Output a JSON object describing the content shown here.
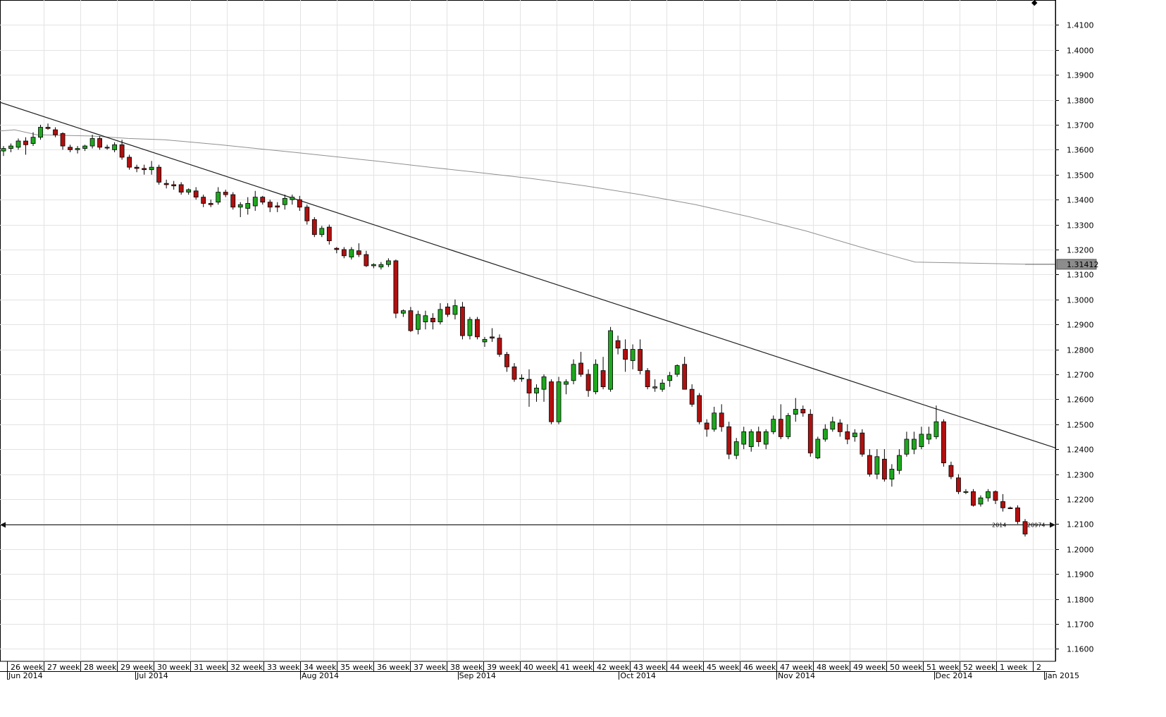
{
  "chart_data": {
    "type": "candlestick",
    "title": "",
    "ylim": [
      1.155,
      1.42
    ],
    "y_ticks": [
      "1.1600",
      "1.1700",
      "1.1800",
      "1.1900",
      "1.2000",
      "1.2100",
      "1.2200",
      "1.2300",
      "1.2400",
      "1.2500",
      "1.2600",
      "1.2700",
      "1.2800",
      "1.2900",
      "1.3000",
      "1.3100",
      "1.3200",
      "1.3300",
      "1.3400",
      "1.3500",
      "1.3600",
      "1.3700",
      "1.3800",
      "1.3900",
      "1.4000",
      "1.4100"
    ],
    "week_labels": [
      "26 week",
      "27 week",
      "28 week",
      "29 week",
      "30 week",
      "31 week",
      "32 week",
      "33 week",
      "34 week",
      "35 week",
      "36 week",
      "37 week",
      "38 week",
      "39 week",
      "40 week",
      "41 week",
      "42 week",
      "43 week",
      "44 week",
      "45 week",
      "46 week",
      "47 week",
      "48 week",
      "49 week",
      "50 week",
      "51 week",
      "52 week",
      "1 week",
      "2"
    ],
    "month_labels": [
      {
        "label": "Jun 2014",
        "week": 0
      },
      {
        "label": "Jul 2014",
        "week": 3.5
      },
      {
        "label": "Aug 2014",
        "week": 8
      },
      {
        "label": "Sep 2014",
        "week": 12.3
      },
      {
        "label": "Oct 2014",
        "week": 16.7
      },
      {
        "label": "Nov 2014",
        "week": 21
      },
      {
        "label": "Dec 2014",
        "week": 25.3
      },
      {
        "label": "Jan 2015",
        "week": 28.3
      }
    ],
    "candles": [
      [
        1.3595,
        1.3615,
        1.3575,
        1.3605
      ],
      [
        1.3605,
        1.3625,
        1.359,
        1.3615
      ],
      [
        1.361,
        1.3645,
        1.36,
        1.3635
      ],
      [
        1.3635,
        1.365,
        1.358,
        1.362
      ],
      [
        1.3625,
        1.367,
        1.3615,
        1.365
      ],
      [
        1.365,
        1.37,
        1.364,
        1.369
      ],
      [
        1.369,
        1.3705,
        1.368,
        1.3685
      ],
      [
        1.368,
        1.369,
        1.365,
        1.366
      ],
      [
        1.3665,
        1.367,
        1.36,
        1.3615
      ],
      [
        1.361,
        1.362,
        1.359,
        1.36
      ],
      [
        1.36,
        1.3615,
        1.3585,
        1.3605
      ],
      [
        1.3605,
        1.362,
        1.3595,
        1.3615
      ],
      [
        1.3615,
        1.366,
        1.3605,
        1.3645
      ],
      [
        1.3645,
        1.3655,
        1.36,
        1.361
      ],
      [
        1.361,
        1.362,
        1.36,
        1.3608
      ],
      [
        1.36,
        1.363,
        1.359,
        1.362
      ],
      [
        1.362,
        1.364,
        1.356,
        1.357
      ],
      [
        1.357,
        1.358,
        1.352,
        1.353
      ],
      [
        1.353,
        1.354,
        1.351,
        1.3525
      ],
      [
        1.3525,
        1.354,
        1.35,
        1.352
      ],
      [
        1.352,
        1.3555,
        1.35,
        1.353
      ],
      [
        1.353,
        1.354,
        1.346,
        1.347
      ],
      [
        1.3465,
        1.348,
        1.3445,
        1.346
      ],
      [
        1.346,
        1.3475,
        1.344,
        1.3455
      ],
      [
        1.346,
        1.347,
        1.342,
        1.343
      ],
      [
        1.343,
        1.3445,
        1.342,
        1.344
      ],
      [
        1.3435,
        1.345,
        1.34,
        1.341
      ],
      [
        1.341,
        1.342,
        1.337,
        1.3385
      ],
      [
        1.3385,
        1.34,
        1.337,
        1.338
      ],
      [
        1.339,
        1.345,
        1.338,
        1.343
      ],
      [
        1.343,
        1.344,
        1.341,
        1.342
      ],
      [
        1.342,
        1.343,
        1.336,
        1.337
      ],
      [
        1.337,
        1.339,
        1.333,
        1.338
      ],
      [
        1.3365,
        1.341,
        1.334,
        1.3385
      ],
      [
        1.3375,
        1.3435,
        1.3355,
        1.341
      ],
      [
        1.341,
        1.3415,
        1.338,
        1.339
      ],
      [
        1.339,
        1.34,
        1.335,
        1.337
      ],
      [
        1.3375,
        1.339,
        1.335,
        1.337
      ],
      [
        1.338,
        1.342,
        1.336,
        1.3405
      ],
      [
        1.34,
        1.342,
        1.338,
        1.341
      ],
      [
        1.34,
        1.3415,
        1.3355,
        1.337
      ],
      [
        1.337,
        1.338,
        1.33,
        1.3315
      ],
      [
        1.332,
        1.333,
        1.325,
        1.326
      ],
      [
        1.326,
        1.3295,
        1.325,
        1.3285
      ],
      [
        1.329,
        1.33,
        1.322,
        1.3235
      ],
      [
        1.3205,
        1.321,
        1.3185,
        1.32
      ],
      [
        1.32,
        1.321,
        1.3165,
        1.3175
      ],
      [
        1.317,
        1.321,
        1.316,
        1.32
      ],
      [
        1.3195,
        1.3225,
        1.317,
        1.318
      ],
      [
        1.318,
        1.3195,
        1.313,
        1.3135
      ],
      [
        1.3135,
        1.3145,
        1.3125,
        1.314
      ],
      [
        1.313,
        1.315,
        1.312,
        1.314
      ],
      [
        1.314,
        1.3165,
        1.313,
        1.3155
      ],
      [
        1.3155,
        1.316,
        1.2925,
        1.2945
      ],
      [
        1.2945,
        1.296,
        1.293,
        1.2955
      ],
      [
        1.2955,
        1.297,
        1.287,
        1.2875
      ],
      [
        1.288,
        1.2955,
        1.286,
        1.294
      ],
      [
        1.291,
        1.2955,
        1.288,
        1.2935
      ],
      [
        1.2925,
        1.2945,
        1.288,
        1.291
      ],
      [
        1.291,
        1.2985,
        1.29,
        1.296
      ],
      [
        1.297,
        1.2985,
        1.293,
        1.294
      ],
      [
        1.294,
        1.3,
        1.292,
        1.2975
      ],
      [
        1.297,
        1.299,
        1.284,
        1.2855
      ],
      [
        1.2855,
        1.293,
        1.284,
        1.292
      ],
      [
        1.292,
        1.293,
        1.284,
        1.285
      ],
      [
        1.283,
        1.285,
        1.281,
        1.284
      ],
      [
        1.285,
        1.2885,
        1.283,
        1.2845
      ],
      [
        1.2845,
        1.286,
        1.277,
        1.278
      ],
      [
        1.278,
        1.279,
        1.271,
        1.273
      ],
      [
        1.273,
        1.2745,
        1.267,
        1.268
      ],
      [
        1.2685,
        1.27,
        1.267,
        1.2685
      ],
      [
        1.268,
        1.272,
        1.257,
        1.2625
      ],
      [
        1.2625,
        1.266,
        1.259,
        1.2645
      ],
      [
        1.264,
        1.27,
        1.259,
        1.269
      ],
      [
        1.267,
        1.268,
        1.25,
        1.251
      ],
      [
        1.251,
        1.269,
        1.25,
        1.267
      ],
      [
        1.266,
        1.268,
        1.262,
        1.267
      ],
      [
        1.2675,
        1.276,
        1.266,
        1.274
      ],
      [
        1.2745,
        1.279,
        1.269,
        1.27
      ],
      [
        1.27,
        1.272,
        1.261,
        1.2635
      ],
      [
        1.263,
        1.276,
        1.262,
        1.274
      ],
      [
        1.2715,
        1.277,
        1.264,
        1.265
      ],
      [
        1.264,
        1.289,
        1.263,
        1.2875
      ],
      [
        1.2835,
        1.2855,
        1.278,
        1.2805
      ],
      [
        1.28,
        1.284,
        1.271,
        1.276
      ],
      [
        1.2755,
        1.282,
        1.272,
        1.28
      ],
      [
        1.28,
        1.284,
        1.27,
        1.2715
      ],
      [
        1.2715,
        1.2725,
        1.264,
        1.265
      ],
      [
        1.2645,
        1.268,
        1.263,
        1.265
      ],
      [
        1.264,
        1.268,
        1.263,
        1.2665
      ],
      [
        1.2675,
        1.271,
        1.265,
        1.2695
      ],
      [
        1.27,
        1.274,
        1.269,
        1.2735
      ],
      [
        1.274,
        1.277,
        1.264,
        1.264
      ],
      [
        1.264,
        1.266,
        1.257,
        1.258
      ],
      [
        1.2615,
        1.2625,
        1.25,
        1.251
      ],
      [
        1.2505,
        1.252,
        1.245,
        1.248
      ],
      [
        1.248,
        1.257,
        1.247,
        1.2545
      ],
      [
        1.2545,
        1.258,
        1.247,
        1.249
      ],
      [
        1.249,
        1.251,
        1.236,
        1.238
      ],
      [
        1.2375,
        1.2445,
        1.236,
        1.243
      ],
      [
        1.242,
        1.249,
        1.24,
        1.247
      ],
      [
        1.241,
        1.248,
        1.239,
        1.247
      ],
      [
        1.247,
        1.249,
        1.241,
        1.243
      ],
      [
        1.242,
        1.248,
        1.24,
        1.247
      ],
      [
        1.247,
        1.2535,
        1.246,
        1.252
      ],
      [
        1.252,
        1.258,
        1.244,
        1.245
      ],
      [
        1.245,
        1.2545,
        1.244,
        1.2535
      ],
      [
        1.254,
        1.2605,
        1.251,
        1.256
      ],
      [
        1.256,
        1.2575,
        1.253,
        1.2545
      ],
      [
        1.254,
        1.256,
        1.237,
        1.2385
      ],
      [
        1.2365,
        1.245,
        1.236,
        1.244
      ],
      [
        1.244,
        1.25,
        1.243,
        1.248
      ],
      [
        1.248,
        1.253,
        1.247,
        1.251
      ],
      [
        1.2505,
        1.252,
        1.245,
        1.247
      ],
      [
        1.247,
        1.25,
        1.242,
        1.244
      ],
      [
        1.245,
        1.248,
        1.243,
        1.2465
      ],
      [
        1.2465,
        1.248,
        1.237,
        1.238
      ],
      [
        1.2375,
        1.24,
        1.229,
        1.23
      ],
      [
        1.23,
        1.24,
        1.228,
        1.237
      ],
      [
        1.236,
        1.24,
        1.227,
        1.228
      ],
      [
        1.228,
        1.234,
        1.225,
        1.232
      ],
      [
        1.2315,
        1.24,
        1.23,
        1.2375
      ],
      [
        1.238,
        1.247,
        1.237,
        1.244
      ],
      [
        1.24,
        1.247,
        1.238,
        1.244
      ],
      [
        1.241,
        1.249,
        1.24,
        1.246
      ],
      [
        1.244,
        1.249,
        1.242,
        1.246
      ],
      [
        1.245,
        1.2575,
        1.244,
        1.251
      ],
      [
        1.251,
        1.252,
        1.233,
        1.2345
      ],
      [
        1.2335,
        1.235,
        1.228,
        1.229
      ],
      [
        1.2285,
        1.23,
        1.222,
        1.223
      ],
      [
        1.223,
        1.224,
        1.222,
        1.223
      ],
      [
        1.223,
        1.224,
        1.217,
        1.2175
      ],
      [
        1.218,
        1.2215,
        1.217,
        1.2205
      ],
      [
        1.2205,
        1.224,
        1.219,
        1.223
      ],
      [
        1.223,
        1.2235,
        1.218,
        1.2195
      ],
      [
        1.219,
        1.222,
        1.215,
        1.2165
      ],
      [
        1.2165,
        1.217,
        1.216,
        1.2162
      ],
      [
        1.2165,
        1.2175,
        1.21,
        1.211
      ],
      [
        1.211,
        1.212,
        1.205,
        1.206
      ]
    ],
    "moving_average": [
      [
        0,
        1.3675
      ],
      [
        16,
        1.368
      ],
      [
        40,
        1.366
      ],
      [
        100,
        1.3655
      ],
      [
        140,
        1.3645
      ],
      [
        180,
        1.364
      ],
      [
        240,
        1.362
      ],
      [
        320,
        1.359
      ],
      [
        410,
        1.3555
      ],
      [
        470,
        1.353
      ],
      [
        520,
        1.351
      ],
      [
        580,
        1.3485
      ],
      [
        640,
        1.3455
      ],
      [
        700,
        1.342
      ],
      [
        760,
        1.338
      ],
      [
        820,
        1.333
      ],
      [
        880,
        1.3275
      ],
      [
        940,
        1.321
      ],
      [
        1000,
        1.315
      ],
      [
        1120,
        1.3141
      ]
    ],
    "trend_line": [
      [
        1.379,
        0
      ],
      [
        1.2405,
        1
      ]
    ],
    "horizontal_line": 1.2097,
    "last_price": "1.31412",
    "hline_label_left": "2014",
    "hline_label_right": "20974",
    "top_marker": "◆"
  }
}
